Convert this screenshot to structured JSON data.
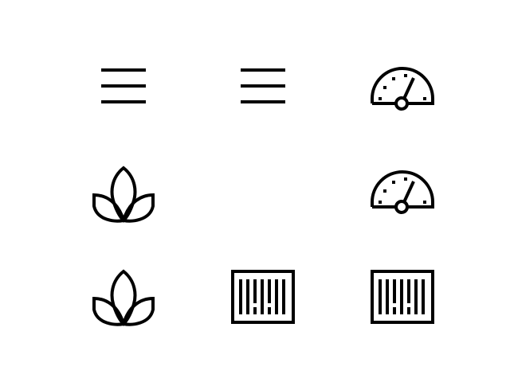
{
  "icons": [
    {
      "row": 1,
      "col": 1,
      "name": "menu-icon"
    },
    {
      "row": 1,
      "col": 2,
      "name": "menu-icon"
    },
    {
      "row": 1,
      "col": 3,
      "name": "speedometer-icon"
    },
    {
      "row": 2,
      "col": 1,
      "name": "lotus-icon"
    },
    {
      "row": 2,
      "col": 3,
      "name": "speedometer-icon"
    },
    {
      "row": 3,
      "col": 1,
      "name": "lotus-icon"
    },
    {
      "row": 3,
      "col": 2,
      "name": "barcode-icon"
    },
    {
      "row": 3,
      "col": 3,
      "name": "barcode-icon"
    }
  ],
  "colors": {
    "background": "#ffffff",
    "icon": "#000000"
  }
}
